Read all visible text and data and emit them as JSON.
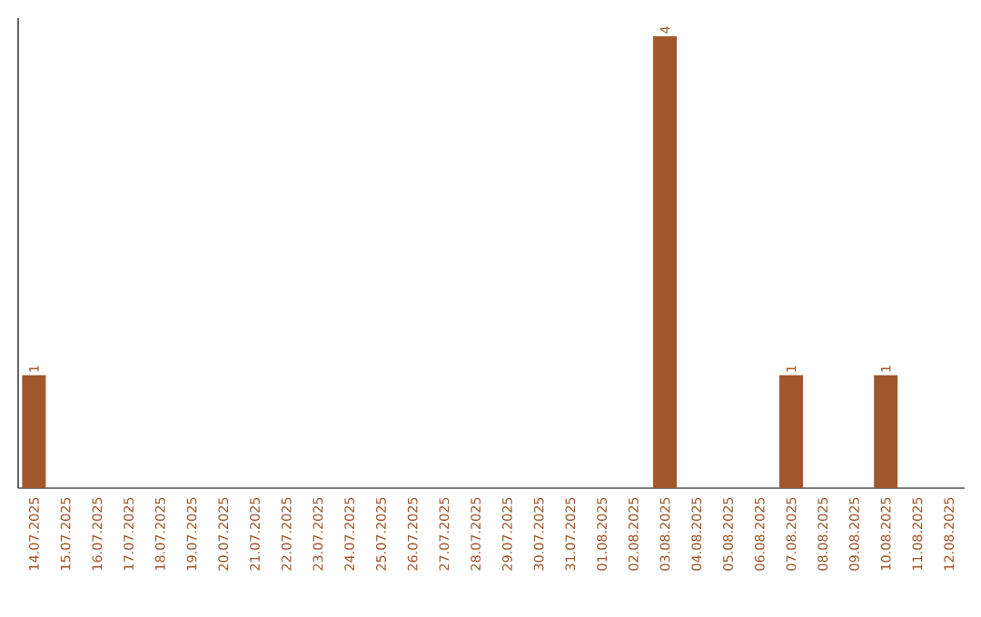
{
  "chart_data": {
    "type": "bar",
    "categories": [
      "14.07.2025",
      "15.07.2025",
      "16.07.2025",
      "17.07.2025",
      "18.07.2025",
      "19.07.2025",
      "20.07.2025",
      "21.07.2025",
      "22.07.2025",
      "23.07.2025",
      "24.07.2025",
      "25.07.2025",
      "26.07.2025",
      "27.07.2025",
      "28.07.2025",
      "29.07.2025",
      "30.07.2025",
      "31.07.2025",
      "01.08.2025",
      "02.08.2025",
      "03.08.2025",
      "04.08.2025",
      "05.08.2025",
      "06.08.2025",
      "07.08.2025",
      "08.08.2025",
      "09.08.2025",
      "10.08.2025",
      "11.08.2025",
      "12.08.2025"
    ],
    "values": [
      1,
      0,
      0,
      0,
      0,
      0,
      0,
      0,
      0,
      0,
      0,
      0,
      0,
      0,
      0,
      0,
      0,
      0,
      0,
      0,
      4,
      0,
      0,
      0,
      1,
      0,
      0,
      1,
      0,
      0
    ],
    "value_labels": [
      "1",
      null,
      null,
      null,
      null,
      null,
      null,
      null,
      null,
      null,
      null,
      null,
      null,
      null,
      null,
      null,
      null,
      null,
      null,
      null,
      "4",
      null,
      null,
      null,
      "1",
      null,
      null,
      "1",
      null,
      null
    ],
    "color": "#a0572b",
    "grid": false
  }
}
